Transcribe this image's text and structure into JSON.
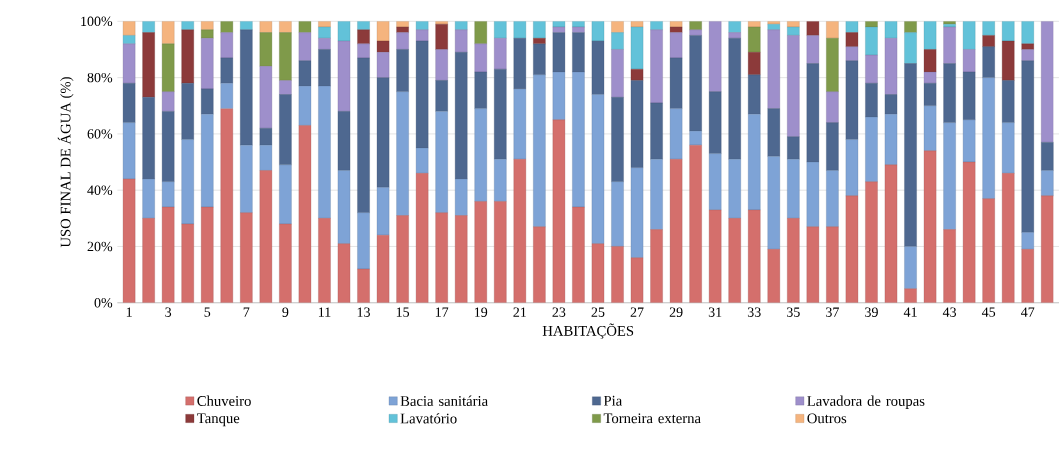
{
  "chart_data": {
    "type": "bar",
    "stacked": true,
    "xlabel": "HABITAÇÕES",
    "ylabel": "USO FINAL DE ÁGUA (%)",
    "categories": [
      "1",
      null,
      "3",
      null,
      "5",
      null,
      "7",
      null,
      "9",
      null,
      "11",
      null,
      "13",
      null,
      "15",
      null,
      "17",
      null,
      "19",
      null,
      "21",
      null,
      "23",
      null,
      "25",
      null,
      "27",
      null,
      "29",
      null,
      "31",
      null,
      "33",
      null,
      "35",
      null,
      "37",
      null,
      "39",
      null,
      "41",
      null,
      "43",
      null,
      "45",
      null,
      "47",
      null
    ],
    "ylim": [
      0,
      100
    ],
    "yticks": [
      {
        "value": 0,
        "label": "0%"
      },
      {
        "value": 20,
        "label": "20%"
      },
      {
        "value": 40,
        "label": "40%"
      },
      {
        "value": 60,
        "label": "60%"
      },
      {
        "value": 80,
        "label": "80%"
      },
      {
        "value": 100,
        "label": "100%"
      }
    ],
    "grid": "y",
    "legend": "bottom",
    "series": [
      {
        "name": "Chuveiro",
        "color": "#d46f6c",
        "values": [
          44,
          30,
          34,
          28,
          34,
          69,
          32,
          47,
          28,
          63,
          30,
          21,
          12,
          24,
          31,
          46,
          32,
          31,
          36,
          36,
          51,
          27,
          65,
          34,
          21,
          20,
          16,
          26,
          51,
          56,
          33,
          30,
          33,
          19,
          30,
          27,
          27,
          38,
          43,
          49,
          5,
          54,
          26,
          50,
          37,
          46,
          19,
          38
        ]
      },
      {
        "name": "Bacia sanitária",
        "color": "#7ea3d6",
        "values": [
          20,
          14,
          9,
          30,
          33,
          9,
          24,
          9,
          21,
          14,
          47,
          26,
          20,
          17,
          44,
          9,
          36,
          13,
          33,
          15,
          25,
          54,
          17,
          48,
          53,
          23,
          32,
          25,
          18,
          5,
          20,
          21,
          34,
          33,
          21,
          23,
          20,
          20,
          23,
          18,
          15,
          16,
          38,
          15,
          43,
          18,
          6,
          9
        ]
      },
      {
        "name": "Pia",
        "color": "#4e6890",
        "values": [
          14,
          29,
          25,
          20,
          9,
          9,
          41,
          6,
          25,
          9,
          13,
          21,
          55,
          39,
          15,
          38,
          11,
          45,
          13,
          32,
          18,
          11,
          14,
          14,
          19,
          30,
          31,
          20,
          18,
          34,
          22,
          43,
          14,
          17,
          8,
          35,
          17,
          28,
          12,
          7,
          65,
          8,
          21,
          17,
          11,
          15,
          61,
          10
        ]
      },
      {
        "name": "Lavadora de roupas",
        "color": "#9e8fcb",
        "values": [
          14,
          0,
          7,
          0,
          18,
          9,
          0,
          22,
          5,
          10,
          4,
          25,
          5,
          9,
          6,
          4,
          11,
          8,
          10,
          11,
          0,
          0,
          2,
          2,
          0,
          17,
          0,
          26,
          9,
          2,
          25,
          2,
          0,
          28,
          36,
          10,
          11,
          5,
          10,
          20,
          0,
          4,
          13,
          8,
          0,
          0,
          4,
          43
        ]
      },
      {
        "name": "Tanque",
        "color": "#8c3a3a",
        "values": [
          0,
          23,
          0,
          19,
          0,
          0,
          0,
          0,
          0,
          0,
          0,
          0,
          5,
          4,
          2,
          0,
          9,
          0,
          0,
          0,
          0,
          2,
          0,
          0,
          0,
          0,
          4,
          0,
          2,
          0,
          0,
          0,
          8,
          0,
          0,
          5,
          0,
          5,
          0,
          0,
          0,
          8,
          0,
          0,
          4,
          14,
          2,
          0
        ]
      },
      {
        "name": "Lavatório",
        "color": "#62c2d9",
        "values": [
          3,
          4,
          0,
          3,
          0,
          0,
          3,
          0,
          0,
          0,
          4,
          7,
          3,
          0,
          0,
          3,
          0,
          3,
          0,
          6,
          6,
          6,
          2,
          2,
          7,
          6,
          15,
          3,
          0,
          0,
          0,
          4,
          0,
          2,
          3,
          0,
          0,
          4,
          10,
          6,
          11,
          10,
          1,
          10,
          5,
          7,
          8,
          0
        ]
      },
      {
        "name": "Torneira externa",
        "color": "#7f9a4a",
        "values": [
          0,
          0,
          17,
          0,
          3,
          4,
          0,
          12,
          17,
          4,
          0,
          0,
          0,
          0,
          0,
          0,
          0,
          0,
          8,
          0,
          0,
          0,
          0,
          0,
          0,
          0,
          0,
          0,
          0,
          3,
          0,
          0,
          9,
          0,
          0,
          0,
          19,
          0,
          2,
          0,
          4,
          0,
          1,
          0,
          0,
          0,
          0,
          0
        ]
      },
      {
        "name": "Outros",
        "color": "#f5b47e",
        "values": [
          5,
          0,
          8,
          0,
          3,
          0,
          0,
          4,
          4,
          0,
          2,
          0,
          0,
          7,
          2,
          0,
          1,
          0,
          0,
          0,
          0,
          0,
          0,
          0,
          0,
          4,
          2,
          0,
          2,
          0,
          0,
          0,
          2,
          1,
          2,
          0,
          6,
          0,
          0,
          0,
          0,
          0,
          0,
          0,
          0,
          0,
          0,
          0
        ]
      }
    ]
  }
}
